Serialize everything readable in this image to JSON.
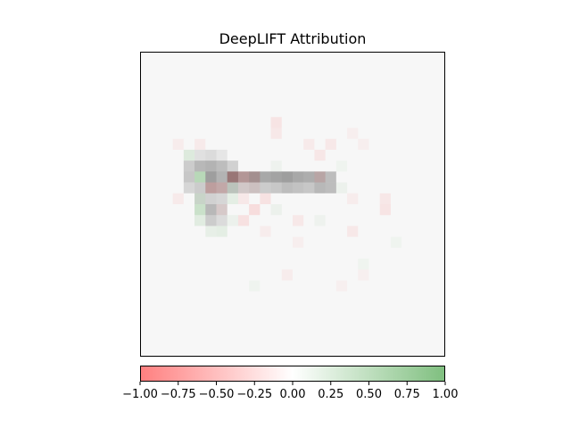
{
  "chart_data": {
    "type": "heatmap",
    "title": "DeepLIFT Attribution",
    "grid": false,
    "image": {
      "rows": 28,
      "cols": 28,
      "background_gray": 0.97,
      "gray_cells": [
        [
          9,
          5,
          0.88
        ],
        [
          9,
          6,
          0.86
        ],
        [
          9,
          7,
          0.9
        ],
        [
          10,
          4,
          0.8
        ],
        [
          10,
          5,
          0.72
        ],
        [
          10,
          6,
          0.7
        ],
        [
          10,
          7,
          0.74
        ],
        [
          10,
          8,
          0.82
        ],
        [
          11,
          4,
          0.78
        ],
        [
          11,
          6,
          0.62
        ],
        [
          11,
          7,
          0.7
        ],
        [
          11,
          8,
          0.6
        ],
        [
          11,
          9,
          0.7
        ],
        [
          11,
          10,
          0.64
        ],
        [
          11,
          11,
          0.66
        ],
        [
          11,
          12,
          0.64
        ],
        [
          11,
          13,
          0.62
        ],
        [
          11,
          14,
          0.66
        ],
        [
          11,
          15,
          0.68
        ],
        [
          11,
          16,
          0.72
        ],
        [
          11,
          17,
          0.74
        ],
        [
          12,
          4,
          0.84
        ],
        [
          12,
          5,
          0.8
        ],
        [
          12,
          6,
          0.74
        ],
        [
          12,
          7,
          0.76
        ],
        [
          12,
          8,
          0.8
        ],
        [
          12,
          9,
          0.82
        ],
        [
          12,
          10,
          0.8
        ],
        [
          12,
          11,
          0.8
        ],
        [
          12,
          12,
          0.78
        ],
        [
          12,
          13,
          0.74
        ],
        [
          12,
          14,
          0.76
        ],
        [
          12,
          15,
          0.78
        ],
        [
          12,
          16,
          0.72
        ],
        [
          12,
          17,
          0.74
        ],
        [
          13,
          5,
          0.88
        ],
        [
          13,
          6,
          0.82
        ],
        [
          13,
          7,
          0.84
        ],
        [
          14,
          6,
          0.72
        ],
        [
          14,
          7,
          0.84
        ],
        [
          15,
          6,
          0.8
        ],
        [
          15,
          7,
          0.86
        ]
      ],
      "attribution_cells": [
        [
          6,
          12,
          -0.25
        ],
        [
          7,
          12,
          -0.2
        ],
        [
          7,
          19,
          -0.12
        ],
        [
          8,
          3,
          -0.15
        ],
        [
          8,
          5,
          -0.18
        ],
        [
          8,
          15,
          -0.18
        ],
        [
          8,
          17,
          -0.2
        ],
        [
          8,
          20,
          -0.12
        ],
        [
          9,
          4,
          0.35
        ],
        [
          9,
          16,
          -0.22
        ],
        [
          10,
          12,
          0.12
        ],
        [
          10,
          18,
          0.1
        ],
        [
          11,
          5,
          0.85
        ],
        [
          11,
          8,
          -0.75
        ],
        [
          11,
          9,
          -0.55
        ],
        [
          11,
          10,
          -0.4
        ],
        [
          11,
          16,
          -0.35
        ],
        [
          12,
          6,
          -0.55
        ],
        [
          12,
          7,
          -0.45
        ],
        [
          12,
          8,
          0.28
        ],
        [
          12,
          9,
          -0.15
        ],
        [
          12,
          10,
          -0.2
        ],
        [
          12,
          18,
          0.15
        ],
        [
          13,
          3,
          -0.18
        ],
        [
          13,
          5,
          0.35
        ],
        [
          13,
          8,
          0.25
        ],
        [
          13,
          9,
          -0.2
        ],
        [
          13,
          11,
          -0.28
        ],
        [
          13,
          19,
          -0.15
        ],
        [
          13,
          22,
          -0.22
        ],
        [
          14,
          5,
          0.6
        ],
        [
          14,
          7,
          -0.2
        ],
        [
          14,
          10,
          -0.35
        ],
        [
          14,
          12,
          0.15
        ],
        [
          14,
          22,
          -0.25
        ],
        [
          15,
          5,
          0.3
        ],
        [
          15,
          8,
          0.15
        ],
        [
          15,
          9,
          -0.3
        ],
        [
          15,
          14,
          -0.2
        ],
        [
          15,
          16,
          0.12
        ],
        [
          16,
          6,
          0.22
        ],
        [
          16,
          7,
          0.25
        ],
        [
          16,
          11,
          -0.15
        ],
        [
          16,
          19,
          -0.2
        ],
        [
          17,
          14,
          -0.12
        ],
        [
          17,
          23,
          0.1
        ],
        [
          19,
          20,
          0.1
        ],
        [
          20,
          13,
          -0.15
        ],
        [
          20,
          20,
          -0.1
        ],
        [
          21,
          10,
          0.1
        ],
        [
          21,
          18,
          -0.1
        ]
      ]
    },
    "colorbar": {
      "cmap": [
        "#ff7f7f",
        "#ffffff",
        "#7fbf7f"
      ],
      "vmin": -1.0,
      "vmax": 1.0,
      "ticks": [
        -1.0,
        -0.75,
        -0.5,
        -0.25,
        0.0,
        0.25,
        0.5,
        0.75,
        1.0
      ],
      "tick_labels": [
        "−1.00",
        "−0.75",
        "−0.50",
        "−0.25",
        "0.00",
        "0.25",
        "0.50",
        "0.75",
        "1.00"
      ]
    }
  }
}
